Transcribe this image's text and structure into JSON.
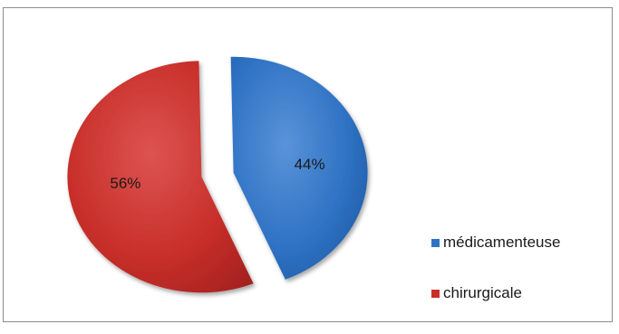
{
  "chart_data": {
    "type": "pie",
    "title": "",
    "slices": [
      {
        "label": "médicamenteuse",
        "value": 44,
        "display": "44%",
        "color": "#2f72c4"
      },
      {
        "label": "chirurgicale",
        "value": 56,
        "display": "56%",
        "color": "#c82f2a"
      }
    ],
    "exploded": true,
    "legend_position": "right-bottom"
  }
}
